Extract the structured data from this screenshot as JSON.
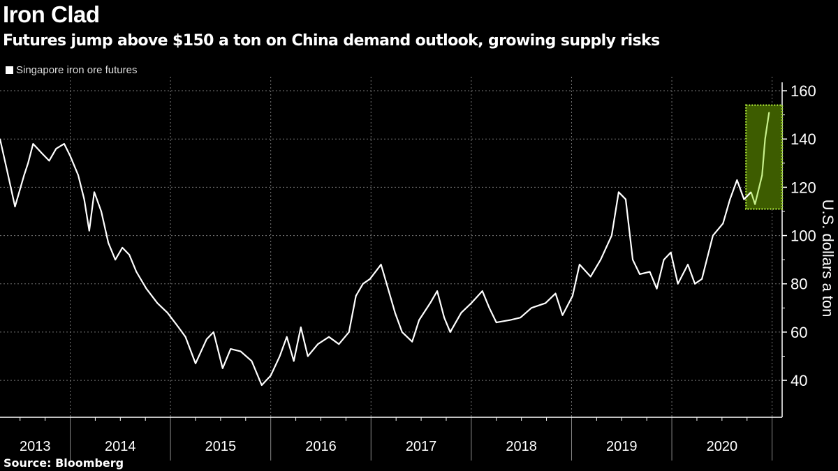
{
  "chart_data": {
    "type": "line",
    "title": "Iron Clad",
    "subtitle": "Futures jump above $150 a ton on China demand outlook, growing supply risks",
    "ylabel": "U.S. dollars a ton",
    "source": "Source: Bloomberg",
    "legend": {
      "position": "top-left"
    },
    "xlim": [
      2013.3,
      2021.1
    ],
    "ylim": [
      24.7,
      165.8
    ],
    "yticks": [
      40,
      60,
      80,
      100,
      120,
      140,
      160
    ],
    "xtick_labels": [
      "2013",
      "2014",
      "2015",
      "2016",
      "2017",
      "2018",
      "2019",
      "2020"
    ],
    "grid": true,
    "colors": {
      "line": "#ffffff",
      "highlight_line": "#c8f08c",
      "highlight_fill": "#3d5c00",
      "highlight_border": "#9fd62f"
    },
    "highlight": {
      "x": [
        2020.74,
        2021.1
      ],
      "y": [
        111,
        154
      ]
    },
    "series": [
      {
        "name": "Singapore iron ore futures",
        "x": [
          2013.3,
          2013.37,
          2013.45,
          2013.54,
          2013.58,
          2013.63,
          2013.72,
          2013.79,
          2013.86,
          2013.94,
          2014.0,
          2014.08,
          2014.14,
          2014.19,
          2014.24,
          2014.31,
          2014.38,
          2014.45,
          2014.52,
          2014.59,
          2014.66,
          2014.76,
          2014.87,
          2014.97,
          2015.08,
          2015.15,
          2015.25,
          2015.36,
          2015.43,
          2015.52,
          2015.6,
          2015.7,
          2015.81,
          2015.91,
          2016.0,
          2016.09,
          2016.16,
          2016.23,
          2016.3,
          2016.37,
          2016.47,
          2016.58,
          2016.68,
          2016.78,
          2016.85,
          2016.92,
          2016.99,
          2017.1,
          2017.17,
          2017.24,
          2017.31,
          2017.41,
          2017.48,
          2017.59,
          2017.66,
          2017.73,
          2017.79,
          2017.9,
          2018.0,
          2018.11,
          2018.18,
          2018.25,
          2018.39,
          2018.49,
          2018.6,
          2018.74,
          2018.84,
          2018.91,
          2019.01,
          2019.08,
          2019.19,
          2019.29,
          2019.4,
          2019.47,
          2019.54,
          2019.61,
          2019.68,
          2019.78,
          2019.85,
          2019.92,
          2019.99,
          2020.06,
          2020.16,
          2020.23,
          2020.3,
          2020.41,
          2020.51,
          2020.58,
          2020.65,
          2020.72,
          2020.79,
          2020.83,
          2020.9,
          2020.93,
          2020.97
        ],
        "y": [
          140,
          127,
          112,
          125,
          130,
          138,
          134,
          131,
          136,
          138,
          133,
          125,
          115,
          102,
          118,
          110,
          97,
          90,
          95,
          92,
          85,
          78,
          72,
          68,
          62,
          58,
          47,
          57,
          60,
          45,
          53,
          52,
          48,
          38,
          42,
          50,
          58,
          48,
          62,
          50,
          55,
          58,
          55,
          60,
          75,
          80,
          82,
          88,
          78,
          68,
          60,
          56,
          65,
          72,
          77,
          66,
          60,
          68,
          72,
          77,
          70,
          64,
          65,
          66,
          70,
          72,
          76,
          67,
          75,
          88,
          83,
          90,
          100,
          118,
          115,
          90,
          84,
          85,
          78,
          90,
          93,
          80,
          88,
          80,
          82,
          100,
          105,
          115,
          123,
          115,
          118,
          113,
          125,
          140,
          151
        ]
      }
    ]
  }
}
